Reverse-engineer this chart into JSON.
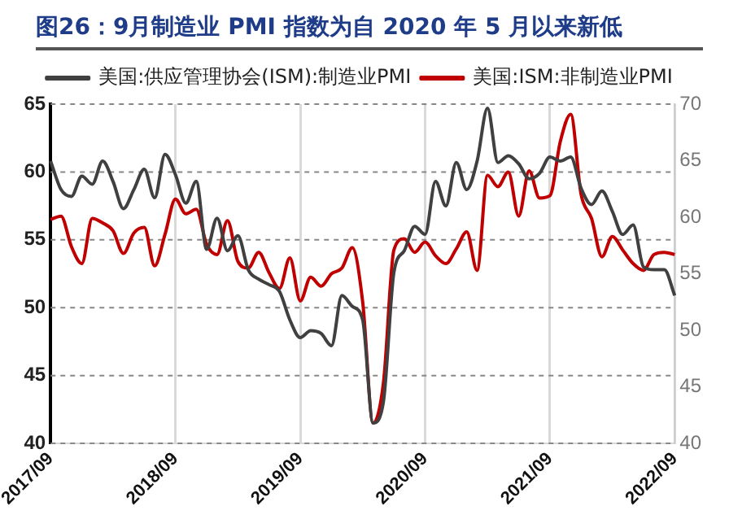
{
  "chart_data": {
    "type": "line",
    "title": "图26：9月制造业 PMI 指数为自 2020 年 5 月以来新低",
    "categories": [
      "2017/09",
      null,
      null,
      null,
      null,
      null,
      null,
      null,
      null,
      null,
      null,
      null,
      "2018/09",
      null,
      null,
      null,
      null,
      null,
      null,
      null,
      null,
      null,
      null,
      null,
      "2019/09",
      null,
      null,
      null,
      null,
      null,
      null,
      null,
      null,
      null,
      null,
      null,
      "2020/09",
      null,
      null,
      null,
      null,
      null,
      null,
      null,
      null,
      null,
      null,
      null,
      "2021/09",
      null,
      null,
      null,
      null,
      null,
      null,
      null,
      null,
      null,
      null,
      null,
      "2022/09"
    ],
    "series": [
      {
        "name": "美国:供应管理协会(ISM):制造业PMI",
        "color": "#404040",
        "axis": "y",
        "values": [
          60.8,
          58.7,
          58.2,
          59.7,
          59.1,
          60.8,
          59.3,
          57.3,
          58.7,
          60.2,
          58.1,
          61.3,
          59.8,
          57.7,
          59.3,
          54.3,
          56.6,
          54.2,
          55.3,
          52.8,
          52.1,
          51.7,
          51.2,
          49.1,
          47.8,
          48.3,
          48.1,
          47.2,
          50.9,
          50.1,
          49.1,
          41.5,
          43.1,
          52.6,
          54.2,
          56.0,
          55.4,
          59.3,
          57.5,
          60.7,
          58.7,
          60.8,
          64.7,
          60.7,
          61.2,
          60.6,
          59.5,
          59.9,
          61.1,
          60.8,
          61.1,
          58.8,
          57.6,
          58.6,
          57.1,
          55.4,
          56.1,
          53.0,
          52.8,
          52.8,
          50.9
        ]
      },
      {
        "name": "美国:ISM:非制造业PMI",
        "color": "#c00000",
        "axis": "y2",
        "values": [
          59.8,
          60.1,
          57.4,
          55.9,
          59.9,
          59.5,
          58.8,
          56.8,
          58.6,
          59.1,
          55.7,
          58.5,
          61.6,
          60.3,
          60.7,
          57.6,
          56.7,
          59.7,
          56.1,
          55.5,
          56.9,
          55.1,
          53.7,
          56.4,
          52.6,
          54.7,
          53.9,
          55.0,
          55.5,
          57.3,
          52.5,
          41.8,
          45.4,
          57.1,
          58.1,
          56.9,
          57.8,
          56.6,
          55.9,
          57.2,
          58.7,
          55.3,
          63.7,
          62.7,
          64.0,
          60.1,
          64.1,
          61.7,
          61.9,
          66.7,
          69.1,
          62.0,
          59.9,
          56.5,
          58.3,
          57.1,
          55.9,
          55.3,
          56.7,
          56.9,
          56.7
        ]
      }
    ],
    "ylim": [
      40,
      65
    ],
    "yticks": [
      40,
      45,
      50,
      55,
      60,
      65
    ],
    "y2lim": [
      40,
      70
    ],
    "y2ticks": [
      40,
      45,
      50,
      55,
      60,
      65,
      70
    ],
    "grid": true,
    "legend": "top"
  }
}
